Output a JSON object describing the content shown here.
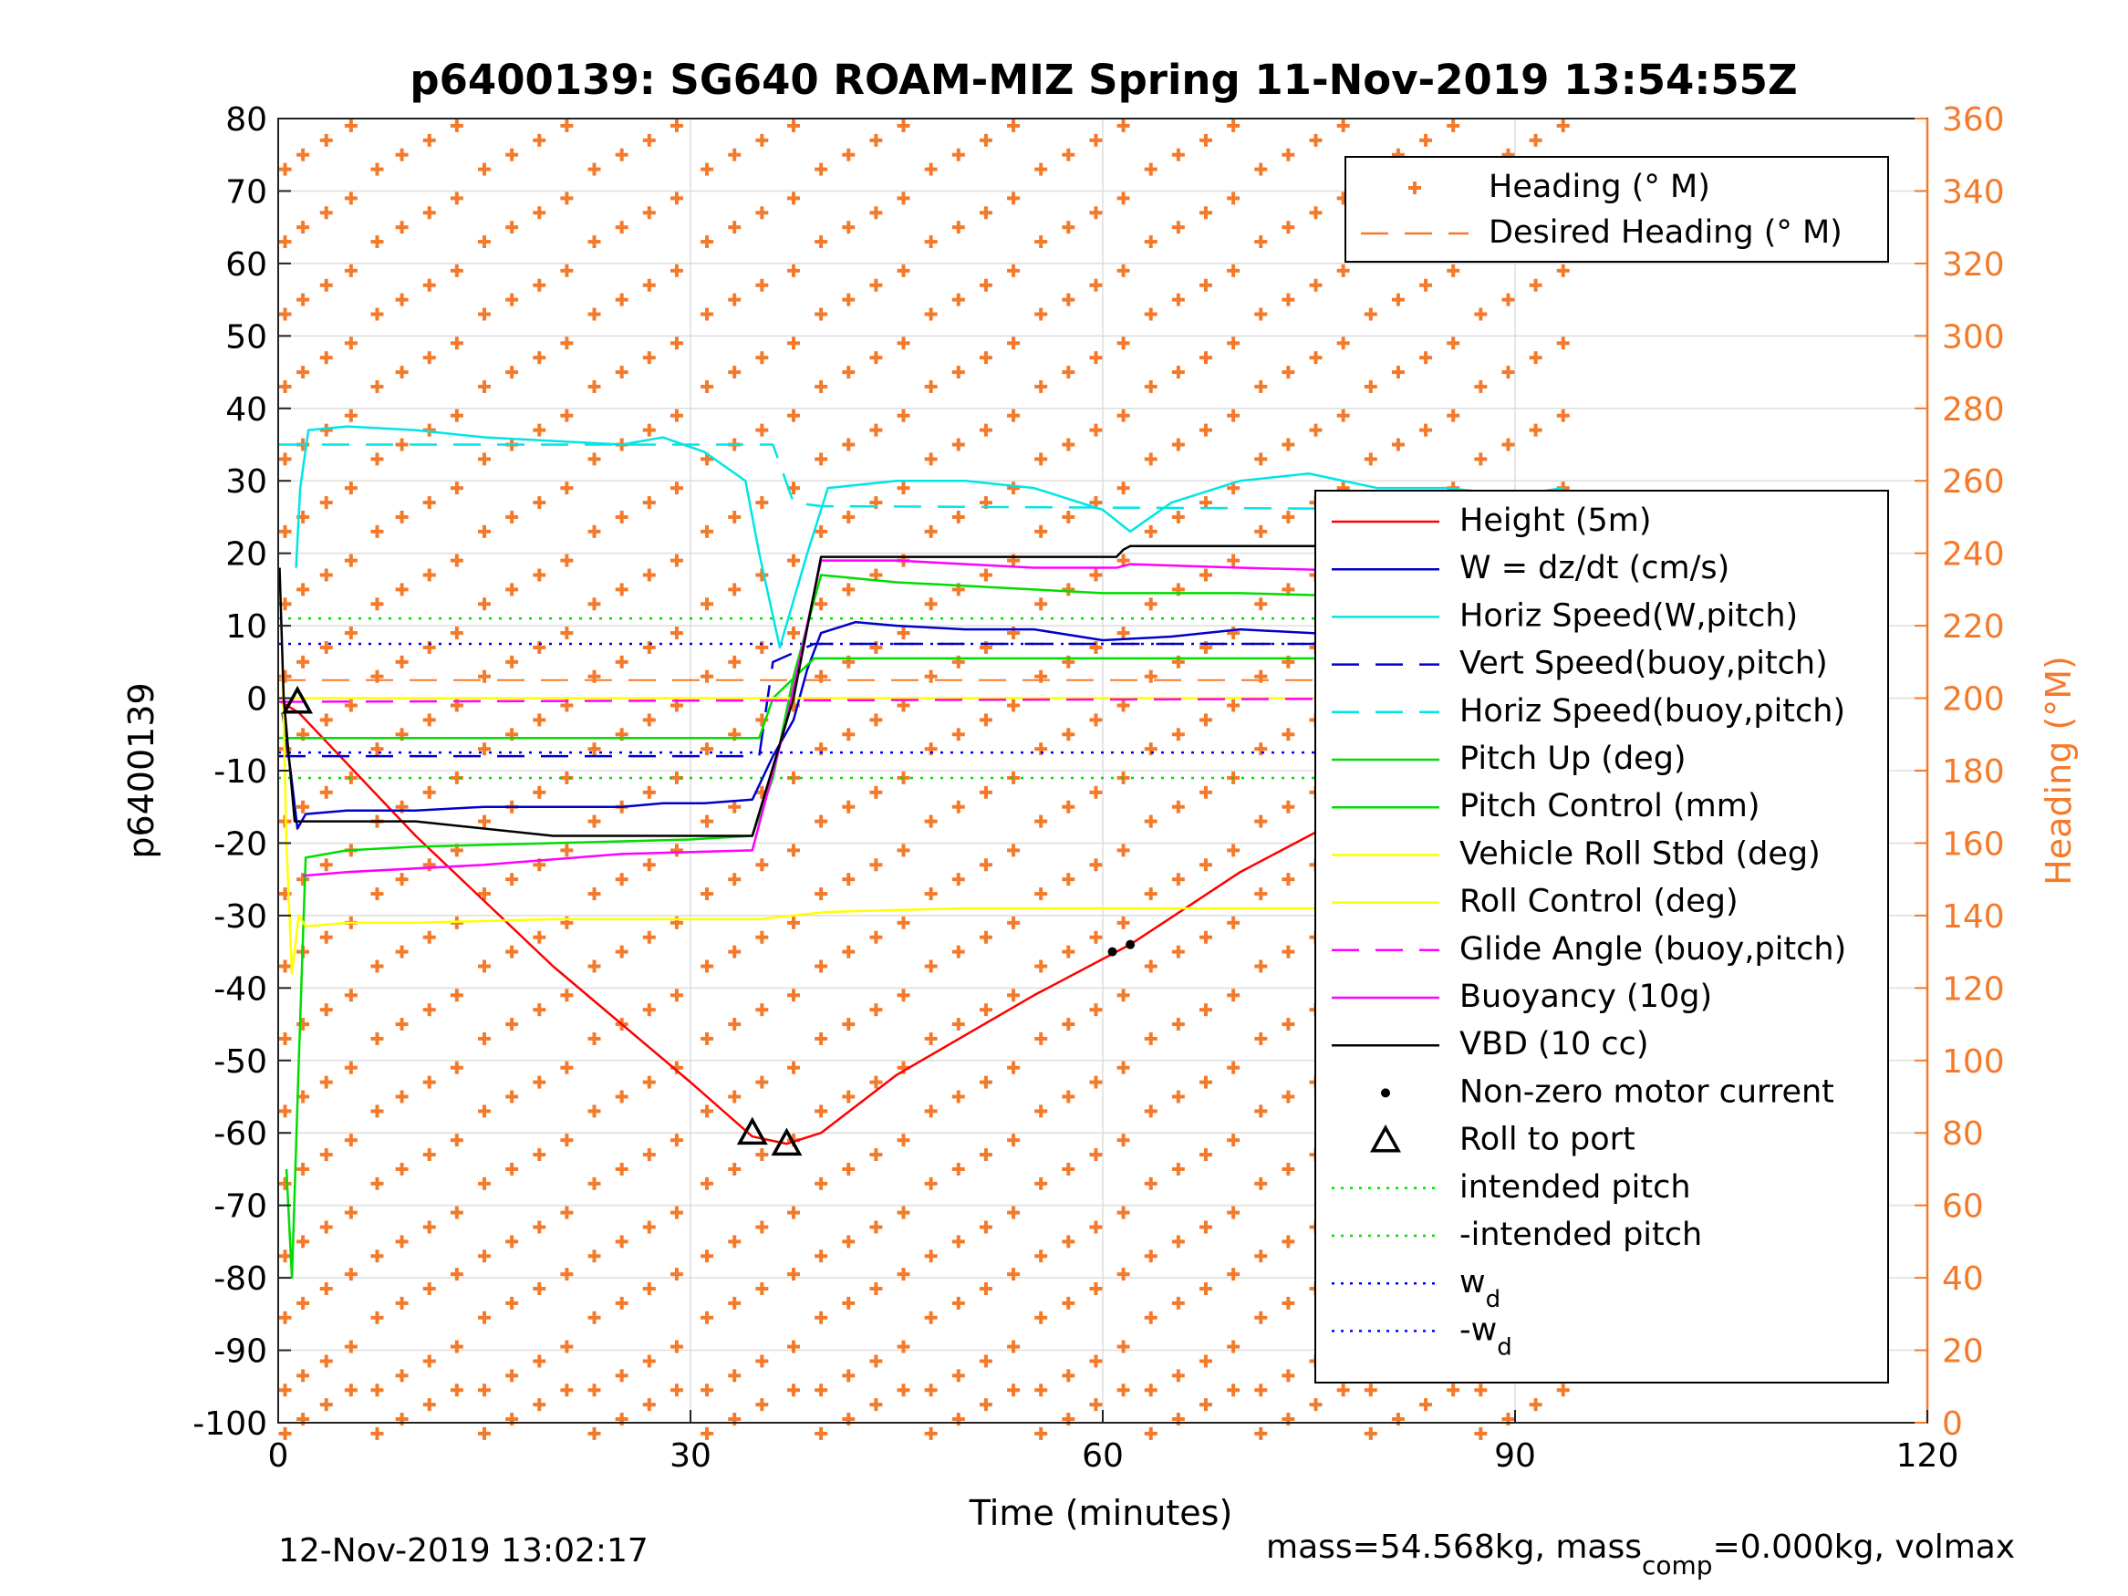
{
  "chart_data": {
    "type": "line",
    "title": "p6400139: SG640 ROAM-MIZ Spring 11-Nov-2019 13:54:55Z",
    "xlabel": "Time (minutes)",
    "ylabel": "p6400139",
    "y2label": "Heading (°M)",
    "xlim": [
      0,
      120
    ],
    "ylim": [
      -100,
      80
    ],
    "y2lim": [
      0,
      360
    ],
    "x_ticks": [
      "0",
      "30",
      "60",
      "90",
      "120"
    ],
    "y_ticks": [
      "80",
      "70",
      "60",
      "50",
      "40",
      "30",
      "20",
      "10",
      "0",
      "-10",
      "-20",
      "-30",
      "-40",
      "-50",
      "-60",
      "-70",
      "-80",
      "-90",
      "-100"
    ],
    "y2_ticks": [
      "360",
      "340",
      "320",
      "300",
      "280",
      "260",
      "240",
      "220",
      "200",
      "180",
      "160",
      "140",
      "120",
      "100",
      "80",
      "60",
      "40",
      "20",
      "0"
    ],
    "grid": true,
    "footer_left": "12-Nov-2019 13:02:17",
    "footer_right": {
      "text1": "mass=54.568kg, mass",
      "sub": "comp",
      "text2": "=0.000kg, volmax"
    },
    "legend_heading": [
      {
        "label": "Heading (° M)",
        "color": "#F47A2A",
        "style": "marker"
      },
      {
        "label": "Desired Heading (° M)",
        "color": "#F47A2A",
        "style": "dash"
      }
    ],
    "legend_main": [
      {
        "label": "Height (5m)",
        "color": "#FF0000",
        "style": "solid"
      },
      {
        "label": "W = dz/dt (cm/s)",
        "color": "#0000CC",
        "style": "solid"
      },
      {
        "label": "Horiz Speed(W,pitch)",
        "color": "#00E5E5",
        "style": "solid"
      },
      {
        "label": "Vert Speed(buoy,pitch)",
        "color": "#0000CC",
        "style": "dash"
      },
      {
        "label": "Horiz Speed(buoy,pitch)",
        "color": "#00E5E5",
        "style": "dash"
      },
      {
        "label": "Pitch Up (deg)",
        "color": "#00DD00",
        "style": "solid"
      },
      {
        "label": "Pitch Control (mm)",
        "color": "#00DD00",
        "style": "solid"
      },
      {
        "label": "Vehicle Roll Stbd (deg)",
        "color": "#FFFF00",
        "style": "solid"
      },
      {
        "label": "Roll Control (deg)",
        "color": "#FFFF00",
        "style": "solid"
      },
      {
        "label": "Glide Angle (buoy,pitch)",
        "color": "#FF00FF",
        "style": "dash"
      },
      {
        "label": "Buoyancy (10g)",
        "color": "#FF00FF",
        "style": "solid"
      },
      {
        "label": "VBD (10 cc)",
        "color": "#000000",
        "style": "solid"
      },
      {
        "label": "Non-zero motor current",
        "color": "#000000",
        "style": "dot"
      },
      {
        "label": "Roll to port",
        "color": "#000000",
        "style": "triangle"
      },
      {
        "label": "intended pitch",
        "color": "#00DD00",
        "style": "dotted"
      },
      {
        "label": "-intended pitch",
        "color": "#00DD00",
        "style": "dotted"
      },
      {
        "label": "w",
        "sub": "d",
        "color": "#0000FF",
        "style": "dotted"
      },
      {
        "label": "-w",
        "sub": "d",
        "color": "#0000FF",
        "style": "dotted"
      }
    ],
    "series": [
      {
        "name": "Height (5m)",
        "color": "#FF0000",
        "x": [
          0.2,
          1.5,
          10,
          20,
          30,
          34.5,
          37,
          39.5,
          45,
          55,
          62,
          70,
          80,
          90,
          93.5
        ],
        "y": [
          -0.5,
          -2,
          -19,
          -37,
          -53,
          -60.5,
          -61.5,
          -60,
          -52,
          -41,
          -34,
          -24,
          -14,
          -3,
          -0.5
        ]
      },
      {
        "name": "W = dz/dt (cm/s)",
        "color": "#0000CC",
        "x": [
          0.3,
          0.9,
          1.4,
          2,
          5,
          10,
          15,
          20,
          25,
          28,
          31,
          34.5,
          36,
          37.5,
          38.5,
          39.5,
          42,
          45,
          50,
          55,
          60,
          65,
          70,
          75,
          80,
          85,
          90,
          93.5
        ],
        "y": [
          -2,
          -10,
          -18,
          -16,
          -15.5,
          -15.5,
          -15,
          -15,
          -15,
          -14.5,
          -14.5,
          -14,
          -8,
          -3,
          4,
          9,
          10.5,
          10,
          9.5,
          9.5,
          8,
          8.5,
          9.5,
          9,
          8.5,
          8,
          8,
          8.5
        ]
      },
      {
        "name": "Horiz Speed(W,pitch)",
        "color": "#00E5E5",
        "x": [
          1.3,
          1.6,
          2.2,
          5,
          10,
          15,
          20,
          25,
          28,
          31,
          34,
          35,
          36.5,
          38.5,
          40,
          45,
          50,
          55,
          60,
          62,
          65,
          70,
          75,
          80,
          85,
          90,
          93.5
        ],
        "y": [
          18,
          29,
          37,
          37.5,
          37,
          36,
          35.5,
          35,
          36,
          34,
          30,
          20,
          7,
          20,
          29,
          30,
          30,
          29,
          26,
          23,
          27,
          30,
          31,
          29,
          29,
          28,
          29
        ]
      },
      {
        "name": "Vert Speed(buoy,pitch)",
        "color": "#0000CC",
        "x": [
          0,
          35,
          36,
          39,
          94
        ],
        "y": [
          -8,
          -8,
          5,
          7.5,
          7.5
        ]
      },
      {
        "name": "Horiz Speed(buoy,pitch)",
        "color": "#00E5E5",
        "x": [
          0,
          36,
          37.5,
          39.5,
          94
        ],
        "y": [
          35,
          35,
          27,
          26.5,
          26
        ]
      },
      {
        "name": "Pitch Up (deg)",
        "color": "#00DD00",
        "x": [
          0.6,
          1.0,
          1.5,
          2,
          5,
          10,
          20,
          30,
          34.5,
          36,
          37.5,
          39.5,
          45,
          55,
          60,
          70,
          80,
          90,
          93.5
        ],
        "y": [
          -65,
          -80,
          -50,
          -22,
          -21,
          -20.5,
          -20,
          -19.5,
          -19,
          -11,
          3,
          17,
          16,
          15,
          14.5,
          14.5,
          14,
          13.5,
          13
        ]
      },
      {
        "name": "Pitch Control (mm)",
        "color": "#00DD00",
        "x": [
          0,
          35,
          36,
          39,
          94
        ],
        "y": [
          -5.5,
          -5.5,
          0,
          5.5,
          5.5
        ]
      },
      {
        "name": "Vehicle Roll Stbd (deg)",
        "color": "#FFFF00",
        "x": [
          0.3,
          0.6,
          1.0,
          1.5,
          2,
          5,
          10,
          20,
          30,
          35,
          40,
          50,
          60,
          70,
          80,
          90,
          93.5
        ],
        "y": [
          5,
          -20,
          -38,
          -30,
          -31.5,
          -31,
          -31,
          -30.5,
          -30.5,
          -30.5,
          -29.5,
          -29,
          -29,
          -29,
          -29,
          -29,
          -28.5
        ]
      },
      {
        "name": "Roll Control (deg)",
        "color": "#FFFF00",
        "x": [
          0,
          94
        ],
        "y": [
          0,
          0
        ]
      },
      {
        "name": "Glide Angle (buoy,pitch)",
        "color": "#FF00FF",
        "x": [
          0,
          94
        ],
        "y": [
          -0.5,
          0
        ]
      },
      {
        "name": "Buoyancy (10g)",
        "color": "#FF00FF",
        "x": [
          1.8,
          5,
          15,
          25,
          34.5,
          37,
          39.5,
          45,
          55,
          61,
          62,
          70,
          80,
          90,
          93.5
        ],
        "y": [
          -24.5,
          -24,
          -23,
          -21.5,
          -21,
          -3,
          19,
          19,
          18,
          18,
          18.5,
          18,
          17.5,
          17.2,
          17
        ]
      },
      {
        "name": "VBD (10 cc)",
        "color": "#000000",
        "x": [
          0.1,
          0.4,
          1.2,
          2,
          10,
          20,
          34.5,
          37.5,
          39.5,
          50,
          61,
          61.5,
          62,
          80,
          93.5
        ],
        "y": [
          18,
          0,
          -17,
          -17,
          -17,
          -19,
          -19,
          0,
          19.5,
          19.5,
          19.5,
          20.5,
          21,
          21,
          21
        ]
      },
      {
        "name": "Non-zero motor current",
        "color": "#000000",
        "style": "dot",
        "x": [
          60.7,
          62
        ],
        "y": [
          -35,
          -34
        ]
      },
      {
        "name": "Roll to port",
        "color": "#000000",
        "style": "triangle",
        "x": [
          1.4,
          34.5,
          37
        ],
        "y": [
          -0.5,
          -60,
          -61.5
        ]
      }
    ],
    "intended_pitch": 11,
    "w_d": 7.5,
    "heading_levels": [
      3,
      15,
      35,
      52,
      72,
      92,
      112,
      132,
      152,
      172,
      192,
      212,
      232,
      252,
      272,
      292,
      312,
      332,
      352
    ],
    "heading_columns": [
      0.5,
      1.8,
      3.5,
      5.3,
      7.2,
      9,
      11,
      13,
      15,
      17,
      19,
      21,
      23,
      25,
      27,
      29,
      31.2,
      33.2,
      35.2,
      37.5,
      39.5,
      41.5,
      43.5,
      45.5,
      47.5,
      49.5,
      51.5,
      53.5,
      55.5,
      57.5,
      59.5,
      61.5,
      63.5,
      65.5,
      67.5,
      69.5,
      71.5,
      73.5,
      75.5,
      77.5,
      79.5,
      81.5,
      83.5,
      85.5,
      87.5,
      89.5,
      91.5,
      93.5
    ]
  }
}
